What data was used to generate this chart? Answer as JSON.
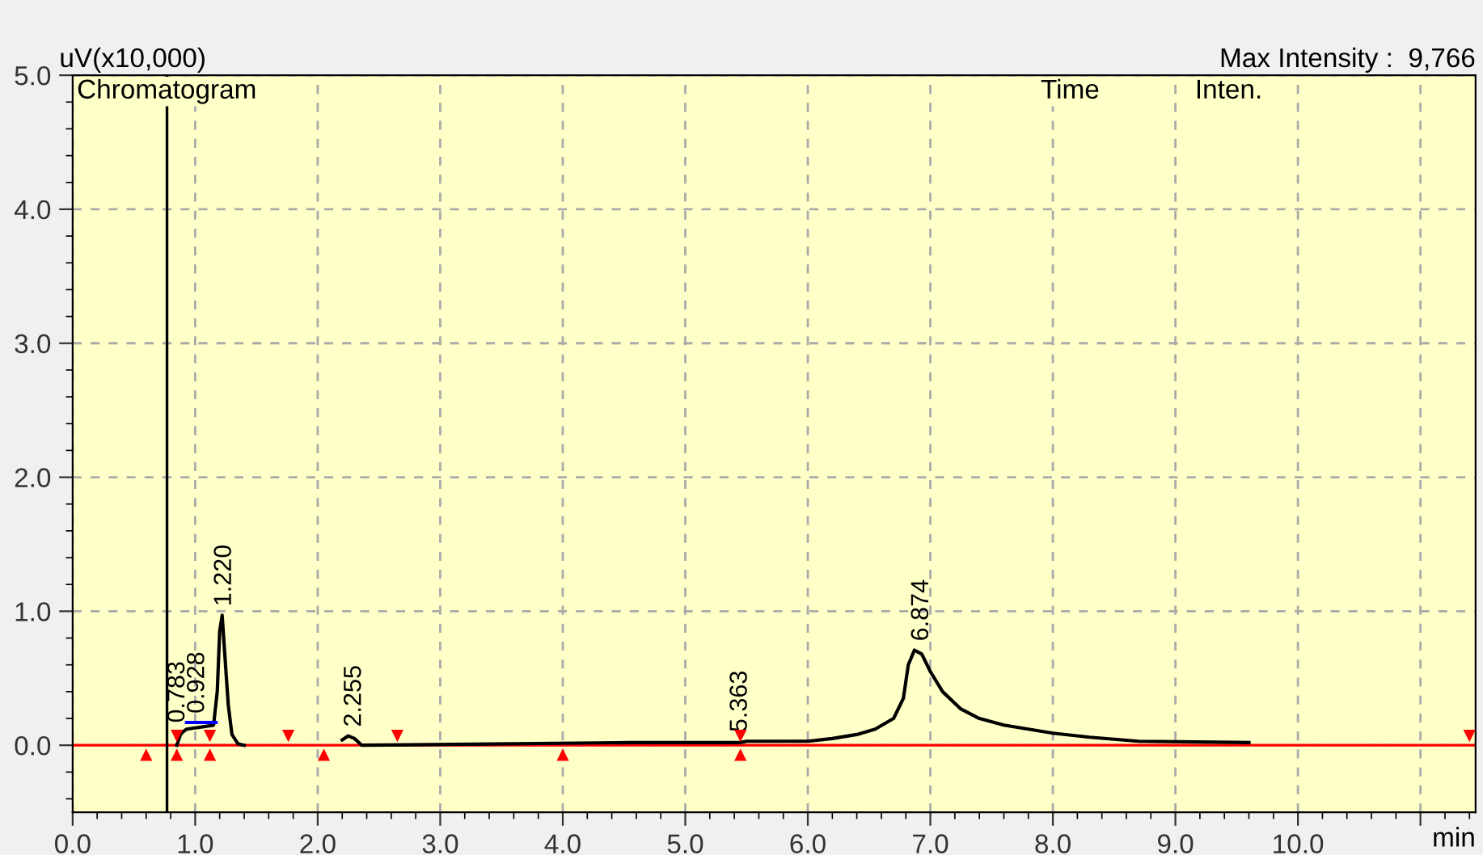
{
  "chart_data": {
    "type": "line",
    "ylabel": "uV(x10,000)",
    "xlabel": "min",
    "annotations": [
      "Max Intensity :  9,766",
      "Chromatogram",
      "Time",
      "Inten.",
      {
        "text": "0.783",
        "x": 0.86,
        "y": 0.1
      },
      {
        "text": "0.928",
        "x": 1.02,
        "y": 0.17
      },
      {
        "text": "1.220",
        "x": 1.24,
        "y": 0.97
      },
      {
        "text": "2.255",
        "x": 2.3,
        "y": 0.07
      },
      {
        "text": "5.363",
        "x": 5.45,
        "y": 0.03
      },
      {
        "text": "6.874",
        "x": 6.93,
        "y": 0.71
      }
    ],
    "series": [
      {
        "color": "#000000",
        "x": [
          0.85,
          0.88,
          0.9,
          0.93,
          1.15,
          1.18,
          1.2,
          1.22,
          1.24,
          1.27,
          1.3,
          1.35,
          1.4,
          2.15,
          2.2,
          2.25,
          2.3,
          2.36,
          4.55,
          5.45,
          5.5,
          6.0,
          6.2,
          6.4,
          6.55,
          6.7,
          6.78,
          6.82,
          6.87,
          6.93,
          7.0,
          7.1,
          7.25,
          7.4,
          7.6,
          7.8,
          8.0,
          8.3,
          8.7,
          9.6
        ],
        "values": [
          0,
          0.08,
          0.1,
          0.12,
          0.15,
          0.4,
          0.85,
          0.97,
          0.7,
          0.3,
          0.08,
          0.01,
          0,
          null,
          0.04,
          0.07,
          0.05,
          0,
          0.02,
          0.02,
          0.03,
          0.03,
          0.05,
          0.08,
          0.12,
          0.2,
          0.35,
          0.6,
          0.71,
          0.68,
          0.55,
          0.4,
          0.27,
          0.2,
          0.15,
          0.12,
          0.09,
          0.06,
          0.03,
          0.02
        ]
      },
      {
        "color": "#0000ff",
        "x": [
          0.93,
          1.17
        ],
        "values": [
          0.17,
          0.17
        ]
      },
      {
        "type": "scatter",
        "marker": "triangle",
        "color": "#ff0000",
        "x": [
          0.6,
          0.85,
          1.12,
          2.05,
          4.0,
          5.45
        ],
        "values": [
          -0.07,
          -0.07,
          -0.07,
          -0.07,
          -0.07,
          -0.07
        ]
      },
      {
        "type": "scatter",
        "marker": "triangle",
        "color": "#ff0000",
        "x": [
          0.85,
          1.12,
          1.76,
          2.65,
          5.45,
          11.4
        ],
        "values": [
          0.07,
          0.07,
          0.07,
          0.07,
          0.07,
          0.07
        ]
      }
    ],
    "ref_lines": [
      {
        "axis": "y",
        "value": 0,
        "color": "#ff0000"
      },
      {
        "axis": "x",
        "value": 0.77,
        "color": "#000000"
      }
    ],
    "xlim": [
      0,
      11.45
    ],
    "ylim": [
      -0.5,
      5.0
    ],
    "xticks": [
      {
        "value": 0,
        "label": "0.0"
      },
      {
        "value": 1,
        "label": "1.0"
      },
      {
        "value": 2,
        "label": "2.0"
      },
      {
        "value": 3,
        "label": "3.0"
      },
      {
        "value": 4,
        "label": "4.0"
      },
      {
        "value": 5,
        "label": "5.0"
      },
      {
        "value": 6,
        "label": "6.0"
      },
      {
        "value": 7,
        "label": "7.0"
      },
      {
        "value": 8,
        "label": "8.0"
      },
      {
        "value": 9,
        "label": "9.0"
      },
      {
        "value": 10,
        "label": "10.0"
      },
      {
        "value": 11,
        "label": null
      }
    ],
    "yticks": [
      {
        "value": 0,
        "label": "0.0"
      },
      {
        "value": 1,
        "label": "1.0"
      },
      {
        "value": 2,
        "label": "2.0"
      },
      {
        "value": 3,
        "label": "3.0"
      },
      {
        "value": 4,
        "label": "4.0"
      },
      {
        "value": 5,
        "label": "5.0"
      }
    ],
    "grid": true,
    "legend": false
  }
}
